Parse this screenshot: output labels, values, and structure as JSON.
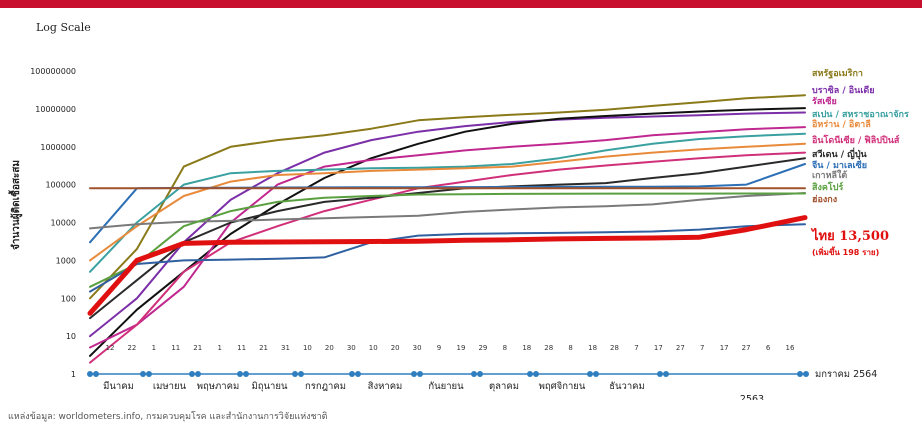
{
  "scale_label": "Log Scale",
  "source": "แหล่งข้อมูล: worldometers.info, กรมควบคุมโรค และสำนักงานการวิจัยแห่งชาติ",
  "chart_data": {
    "type": "line",
    "title": "",
    "ylabel": "จำนวนผู้ติดเชื้อสะสม",
    "yscale": "log",
    "ylim": [
      1,
      100000000
    ],
    "y_ticks": [
      "1",
      "10",
      "100",
      "1000",
      "10000",
      "100000",
      "1000000",
      "10000000",
      "100000000"
    ],
    "x_day_ticks": [
      "12",
      "22",
      "1",
      "11",
      "21",
      "1",
      "11",
      "21",
      "31",
      "10",
      "20",
      "30",
      "10",
      "20",
      "30",
      "9",
      "19",
      "29",
      "8",
      "18",
      "28",
      "8",
      "18",
      "28",
      "7",
      "17",
      "27",
      "7",
      "17",
      "27",
      "6",
      "16"
    ],
    "months": [
      "มีนาคม",
      "เมษายน",
      "พฤษภาคม",
      "มิถุนายน",
      "กรกฎาคม",
      "สิงหาคม",
      "กันยายน",
      "ตุลาคม",
      "พฤศจิกายน",
      "ธันวาคม",
      "มกราคม 2564"
    ],
    "year_2563": "2563",
    "grid": false,
    "legend": "right, labels at line ends",
    "x": [
      0,
      20,
      40,
      60,
      80,
      100,
      120,
      140,
      160,
      180,
      200,
      220,
      240,
      260,
      280,
      305
    ],
    "series": [
      {
        "name": "สหรัฐอเมริกา",
        "color": "#8b7a1a",
        "values": [
          100,
          2000,
          300000,
          1000000,
          1500000,
          2000000,
          3000000,
          5000000,
          6000000,
          7000000,
          8000000,
          9500000,
          12000000,
          15000000,
          19000000,
          23000000
        ]
      },
      {
        "name": "บราซิล / อินเดีย",
        "color": "#7b2fa8",
        "values": [
          10,
          100,
          3000,
          40000,
          200000,
          700000,
          1500000,
          2500000,
          3500000,
          4500000,
          5200000,
          5800000,
          6300000,
          6800000,
          7500000,
          8000000
        ]
      },
      {
        "name": "",
        "color": "#111111",
        "values": [
          3,
          50,
          500,
          5000,
          30000,
          150000,
          500000,
          1200000,
          2500000,
          4000000,
          5500000,
          6500000,
          7500000,
          8500000,
          9500000,
          10500000
        ]
      },
      {
        "name": "รัสเซีย",
        "color": "#c02890",
        "values": [
          5,
          20,
          200,
          10000,
          100000,
          300000,
          450000,
          600000,
          800000,
          1000000,
          1200000,
          1500000,
          2000000,
          2400000,
          2900000,
          3300000
        ]
      },
      {
        "name": "สเปน / สหราชอาณาจักร",
        "color": "#3aa0a0",
        "values": [
          500,
          10000,
          100000,
          200000,
          230000,
          250000,
          270000,
          280000,
          300000,
          350000,
          500000,
          800000,
          1200000,
          1600000,
          1900000,
          2200000
        ]
      },
      {
        "name": "อิหร่าน / อิตาลี",
        "color": "#e88a3a",
        "values": [
          1000,
          8000,
          50000,
          120000,
          180000,
          200000,
          230000,
          250000,
          270000,
          300000,
          400000,
          550000,
          700000,
          850000,
          1000000,
          1200000
        ]
      },
      {
        "name": "อินโดนีเซีย / ฟิลิปปินส์",
        "color": "#d0307a",
        "values": [
          2,
          20,
          500,
          3000,
          8000,
          20000,
          40000,
          80000,
          120000,
          180000,
          250000,
          320000,
          400000,
          500000,
          600000,
          700000
        ]
      },
      {
        "name": "สวีเดน / ญี่ปุ่น",
        "color": "#2a2a2a",
        "values": [
          30,
          300,
          3000,
          10000,
          20000,
          35000,
          45000,
          60000,
          80000,
          90000,
          100000,
          110000,
          150000,
          200000,
          300000,
          500000
        ]
      },
      {
        "name": "จีน / มาเลเซีย",
        "color": "#2d6fb5",
        "values": [
          3000,
          80000,
          82000,
          83000,
          84000,
          84500,
          85000,
          85500,
          86000,
          86500,
          87000,
          87500,
          88000,
          90000,
          100000,
          350000
        ]
      },
      {
        "name": "เกาหลีใต้",
        "color": "#7a7a7a",
        "values": [
          7000,
          9000,
          10500,
          11000,
          12000,
          13000,
          14000,
          15000,
          19000,
          22000,
          25000,
          27000,
          30000,
          40000,
          50000,
          60000
        ]
      },
      {
        "name": "สิงคโปร์",
        "color": "#5aa040",
        "values": [
          200,
          800,
          8000,
          20000,
          35000,
          45000,
          50000,
          55000,
          56000,
          57000,
          57500,
          57800,
          58000,
          58100,
          58200,
          58300
        ]
      },
      {
        "name": "ฮ่องกง",
        "color": "#a0522d",
        "values": [
          80000,
          80000,
          80000,
          80000,
          80000,
          80000,
          80000,
          80000,
          80000,
          80000,
          80000,
          80000,
          80000,
          80000,
          80000,
          80000
        ]
      },
      {
        "name": "",
        "color": "#3060a0",
        "values": [
          150,
          800,
          1000,
          1050,
          1100,
          1200,
          3000,
          4500,
          5000,
          5200,
          5300,
          5500,
          5800,
          6500,
          8000,
          9000
        ]
      },
      {
        "name": "ไทย 13,500",
        "color": "#e01010",
        "values": [
          40,
          1000,
          2800,
          3000,
          3050,
          3100,
          3150,
          3200,
          3400,
          3500,
          3700,
          3800,
          3900,
          4100,
          6500,
          13500
        ]
      }
    ],
    "thai_note": "(เพิ่มขึ้น 198 ราย)"
  }
}
